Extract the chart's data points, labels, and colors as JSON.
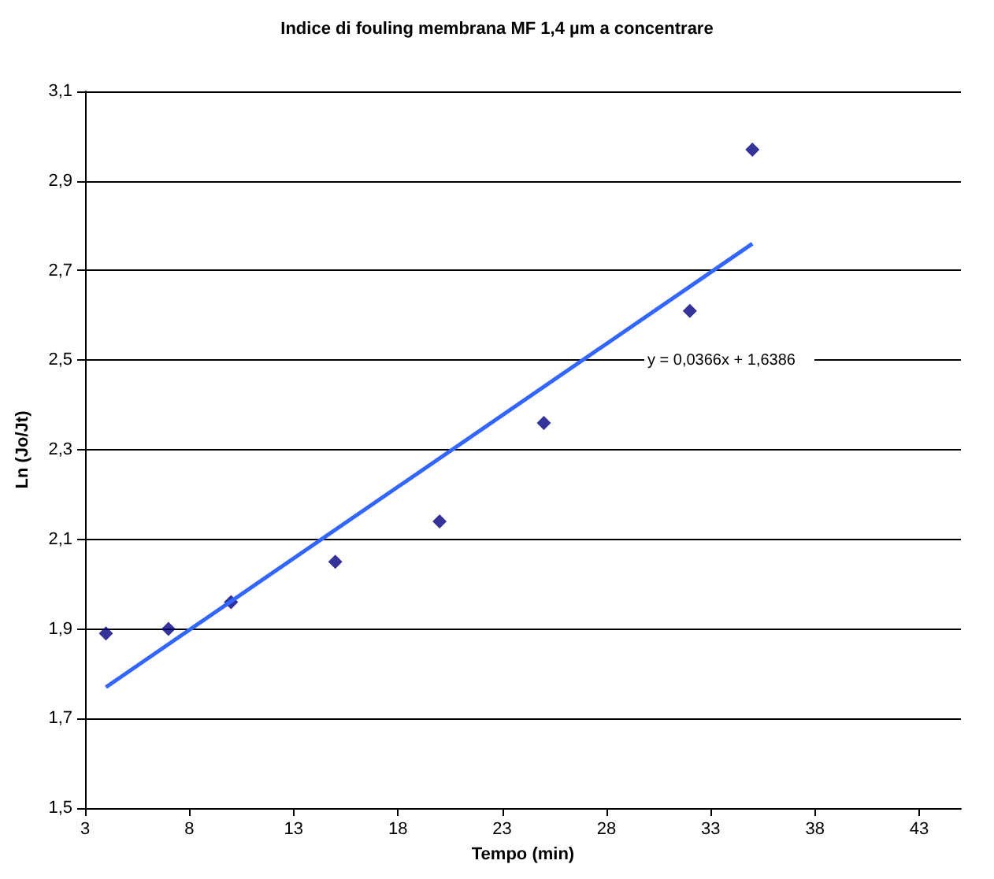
{
  "chart_data": {
    "type": "scatter",
    "title": "Indice di fouling membrana MF 1,4 µm a concentrare",
    "xlabel": "Tempo (min)",
    "ylabel": "Ln (Jo/Jt)",
    "x": [
      4,
      7,
      10,
      15,
      20,
      25,
      32,
      35
    ],
    "series": [
      {
        "color": "#000080",
        "marker": "diamond",
        "values": [
          1.89,
          1.9,
          1.96,
          2.05,
          2.14,
          2.36,
          2.61,
          2.97
        ]
      },
      {
        "type": "line",
        "color": "#3366ff",
        "x": [
          4,
          35
        ],
        "values": [
          1.77,
          2.76
        ],
        "marker": "none",
        "line_style": "solid"
      }
    ],
    "xlim": [
      3,
      45
    ],
    "xticks": [
      3,
      8,
      13,
      18,
      23,
      28,
      33,
      38,
      43
    ],
    "ylim": [
      1.5,
      3.1
    ],
    "yticks": [
      {
        "value": 1.5,
        "label": "1,5"
      },
      {
        "value": 1.7,
        "label": "1,7"
      },
      {
        "value": 1.9,
        "label": "1,9"
      },
      {
        "value": 2.1,
        "label": "2,1"
      },
      {
        "value": 2.3,
        "label": "2,3"
      },
      {
        "value": 2.5,
        "label": "2,5"
      },
      {
        "value": 2.7,
        "label": "2,7"
      },
      {
        "value": 2.9,
        "label": "2,9"
      },
      {
        "value": 3.1,
        "label": "3,1"
      }
    ],
    "grid": "y",
    "annotations": [
      "y = 0,0366x + 1,6386"
    ]
  }
}
